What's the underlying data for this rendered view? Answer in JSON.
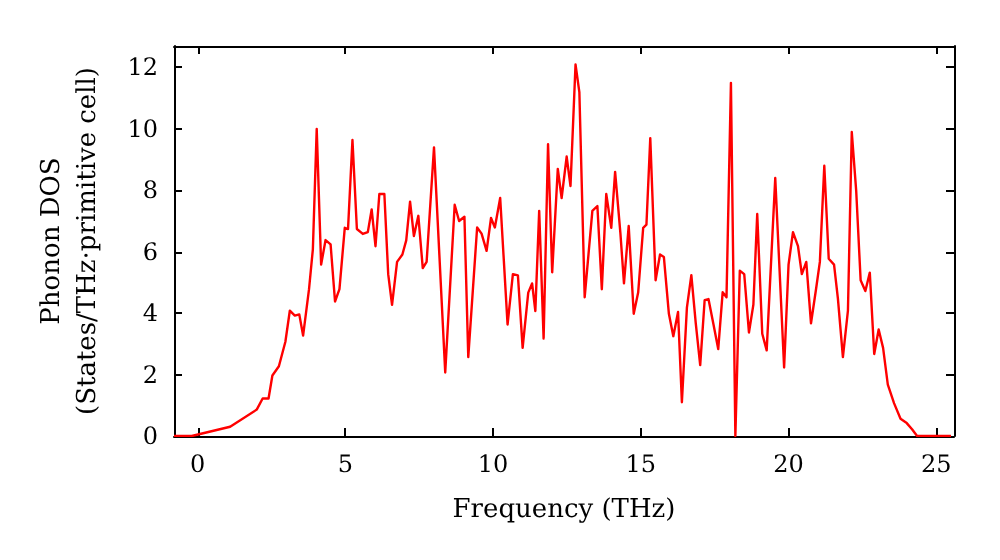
{
  "chart_data": {
    "type": "line",
    "xlabel": "Frequency (THz)",
    "ylabel": "Phonon DOS\n(States/THz·primitive cell)",
    "xlim": [
      -0.8,
      25.6
    ],
    "xticks": [
      0,
      5,
      10,
      15,
      20,
      25
    ],
    "ylim": [
      0,
      12.7
    ],
    "yticks": [
      0,
      2,
      4,
      6,
      8,
      10,
      12
    ],
    "grid": false,
    "marker": "none",
    "line_style": "solid",
    "series": [
      {
        "color": "#ff0000",
        "x": [
          -0.8,
          -0.2,
          1.1,
          2.0,
          2.2,
          2.4,
          2.53,
          2.75,
          2.97,
          3.12,
          3.29,
          3.44,
          3.57,
          3.77,
          3.9,
          4.03,
          4.18,
          4.33,
          4.5,
          4.65,
          4.8,
          4.98,
          5.09,
          5.24,
          5.39,
          5.59,
          5.76,
          5.89,
          6.02,
          6.15,
          6.32,
          6.45,
          6.58,
          6.75,
          6.93,
          7.06,
          7.19,
          7.32,
          7.47,
          7.62,
          7.75,
          8.0,
          8.38,
          8.7,
          8.85,
          9.03,
          9.16,
          9.46,
          9.61,
          9.78,
          9.93,
          10.06,
          10.24,
          10.49,
          10.67,
          10.84,
          11.0,
          11.19,
          11.32,
          11.43,
          11.56,
          11.71,
          11.86,
          12.0,
          12.19,
          12.32,
          12.49,
          12.62,
          12.79,
          12.92,
          13.1,
          13.36,
          13.53,
          13.68,
          13.83,
          14.0,
          14.13,
          14.31,
          14.43,
          14.59,
          14.76,
          14.91,
          15.08,
          15.19,
          15.32,
          15.5,
          15.65,
          15.78,
          15.95,
          16.1,
          16.26,
          16.39,
          16.56,
          16.71,
          16.86,
          17.01,
          17.16,
          17.29,
          17.46,
          17.62,
          17.77,
          17.9,
          18.05,
          18.2,
          18.35,
          18.5,
          18.66,
          18.81,
          18.94,
          19.11,
          19.26,
          19.55,
          19.85,
          20.0,
          20.15,
          20.32,
          20.45,
          20.6,
          20.76,
          20.93,
          21.06,
          21.21,
          21.36,
          21.54,
          21.67,
          21.84,
          22.01,
          22.14,
          22.29,
          22.44,
          22.6,
          22.75,
          22.9,
          23.05,
          23.2,
          23.36,
          23.57,
          23.79,
          24.0,
          24.18,
          24.35,
          25.5
        ],
        "values": [
          0,
          0,
          0.3,
          0.86,
          1.22,
          1.22,
          1.97,
          2.27,
          3.07,
          4.08,
          3.92,
          3.96,
          3.27,
          4.78,
          6.08,
          10.0,
          5.58,
          6.38,
          6.24,
          4.38,
          4.78,
          6.78,
          6.74,
          9.64,
          6.74,
          6.58,
          6.64,
          7.38,
          6.18,
          7.88,
          7.88,
          5.27,
          4.27,
          5.67,
          5.91,
          6.37,
          7.63,
          6.51,
          7.17,
          5.47,
          5.67,
          9.4,
          2.07,
          7.53,
          7.0,
          7.14,
          2.57,
          6.79,
          6.59,
          6.03,
          7.1,
          6.79,
          7.75,
          3.63,
          5.27,
          5.23,
          2.87,
          4.67,
          4.97,
          4.07,
          7.33,
          3.17,
          9.5,
          5.33,
          8.7,
          7.75,
          9.1,
          8.14,
          12.1,
          11.2,
          4.52,
          7.33,
          7.49,
          4.78,
          7.88,
          6.78,
          8.6,
          6.59,
          4.97,
          6.84,
          3.98,
          4.67,
          6.78,
          6.88,
          9.7,
          5.07,
          5.91,
          5.83,
          3.98,
          3.25,
          4.04,
          1.1,
          4.18,
          5.24,
          3.67,
          2.31,
          4.42,
          4.46,
          3.63,
          2.83,
          4.68,
          4.52,
          11.5,
          0,
          5.38,
          5.27,
          3.37,
          4.28,
          7.23,
          3.33,
          2.79,
          8.4,
          2.23,
          5.58,
          6.64,
          6.18,
          5.27,
          5.67,
          3.67,
          4.78,
          5.67,
          8.8,
          5.77,
          5.58,
          4.48,
          2.57,
          4.08,
          9.9,
          7.98,
          5.07,
          4.72,
          5.32,
          2.67,
          3.47,
          2.87,
          1.67,
          1.07,
          0.56,
          0.42,
          0.22,
          0,
          0
        ]
      }
    ]
  }
}
